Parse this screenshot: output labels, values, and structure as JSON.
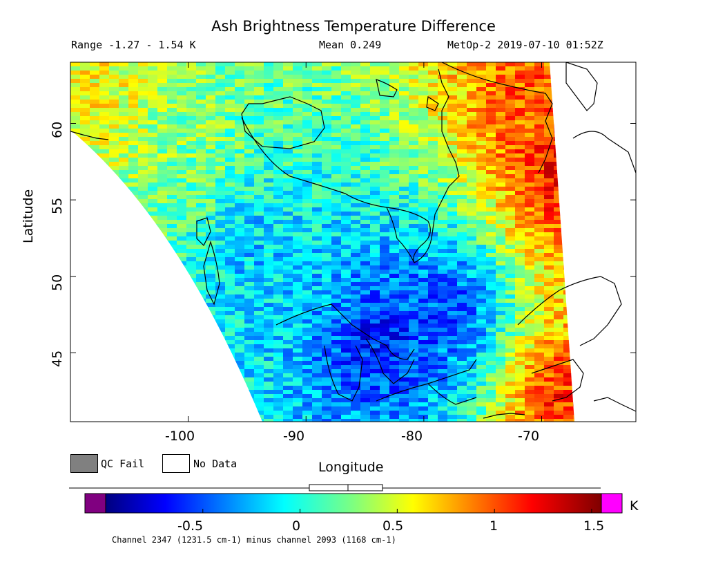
{
  "header": {
    "title": "Ash Brightness Temperature Difference",
    "range": "Range -1.27 - 1.54 K",
    "mean": "Mean 0.249",
    "satellite": "MetOp-2 2019-07-10 01:52Z"
  },
  "map": {
    "xlabel": "Longitude",
    "ylabel": "Latitude",
    "lon_range": [
      -110,
      -62
    ],
    "lat_range": [
      40.5,
      64.0
    ],
    "x_ticks": [
      "-100",
      "-90",
      "-80",
      "-70"
    ],
    "y_ticks": [
      "60",
      "55",
      "50",
      "45"
    ]
  },
  "legend": {
    "qc_fail": "QC Fail",
    "no_data": "No Data",
    "qc_fail_color": "#808080",
    "no_data_color": "#ffffff"
  },
  "colorbar": {
    "ticks": [
      "-0.5",
      "0",
      "0.5",
      "1",
      "1.5"
    ],
    "unit": "K",
    "caption": "Channel 2347 (1231.5 cm-1) minus channel 2093 (1168 cm-1)",
    "under_color": "#800080",
    "over_color": "#ff00ff",
    "range": [
      -1.0,
      1.55
    ]
  },
  "chart_data": {
    "type": "heatmap",
    "title": "Ash Brightness Temperature Difference",
    "xlabel": "Longitude",
    "ylabel": "Latitude",
    "xlim": [
      -110,
      -62
    ],
    "ylim": [
      40.5,
      64.0
    ],
    "value_range": [
      -1.27,
      1.54
    ],
    "mean": 0.249,
    "unit": "K",
    "colorscale": "jet",
    "regions": [
      {
        "lon": -108,
        "lat": 62,
        "value": 0.6
      },
      {
        "lon": -100,
        "lat": 58,
        "value": 0.3
      },
      {
        "lon": -95,
        "lat": 52,
        "value": -0.2
      },
      {
        "lon": -84,
        "lat": 46,
        "value": -0.7
      },
      {
        "lon": -78,
        "lat": 48,
        "value": -0.6
      },
      {
        "lon": -72,
        "lat": 62,
        "value": 1.0
      },
      {
        "lon": -69,
        "lat": 57,
        "value": 1.3
      },
      {
        "lon": -69,
        "lat": 42,
        "value": 1.2
      }
    ]
  }
}
